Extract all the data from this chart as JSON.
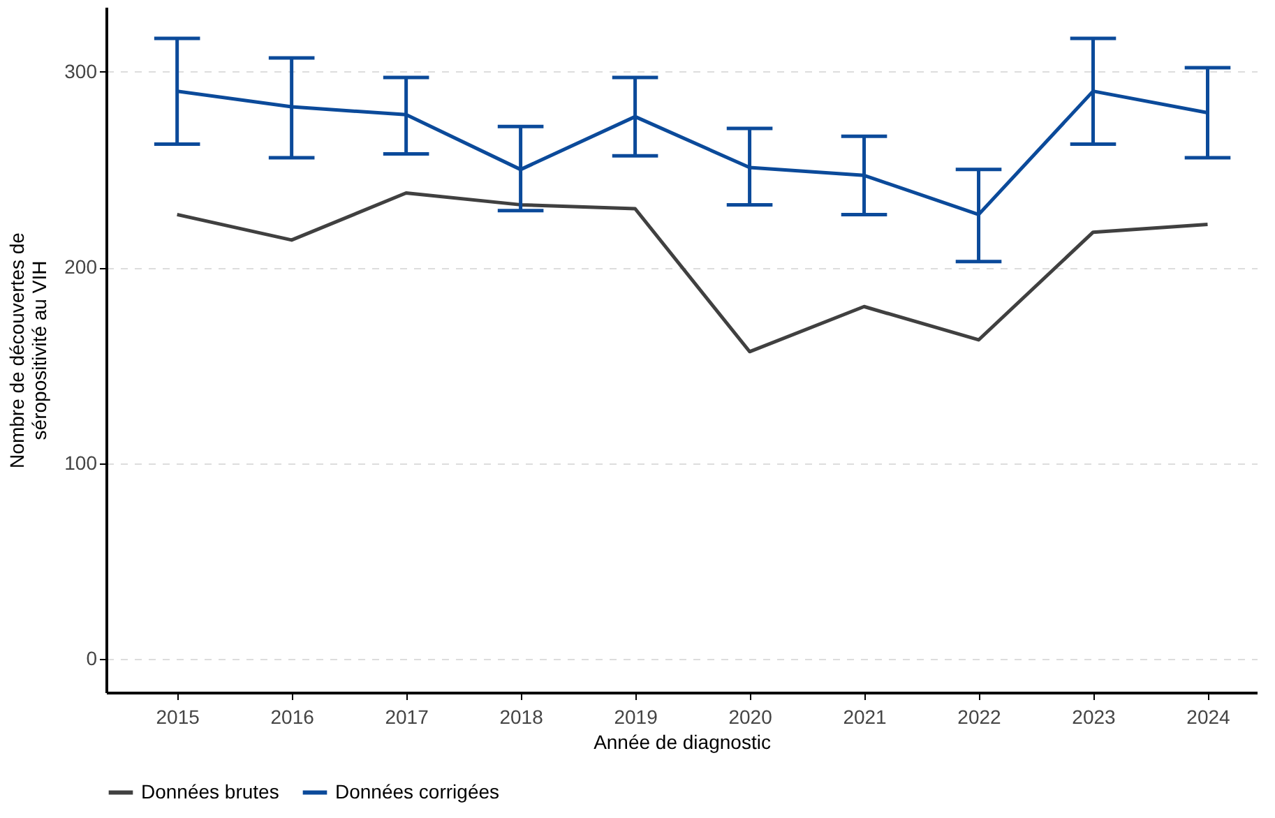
{
  "chart_data": {
    "type": "line",
    "xlabel": "Année de diagnostic",
    "ylabel": "Nombre de découvertes de\nséropositivité au VIH",
    "categories": [
      "2015",
      "2016",
      "2017",
      "2018",
      "2019",
      "2020",
      "2021",
      "2022",
      "2023",
      "2024"
    ],
    "series": [
      {
        "name": "Données brutes",
        "color": "#404040",
        "values": [
          227,
          214,
          238,
          232,
          230,
          157,
          180,
          163,
          218,
          222
        ]
      },
      {
        "name": "Données corrigées",
        "color": "#0b4a9a",
        "values": [
          290,
          282,
          278,
          250,
          277,
          251,
          247,
          227,
          290,
          279
        ],
        "errors": [
          [
            263,
            317
          ],
          [
            256,
            307
          ],
          [
            258,
            297
          ],
          [
            229,
            272
          ],
          [
            257,
            297
          ],
          [
            232,
            271
          ],
          [
            227,
            267
          ],
          [
            203,
            250
          ],
          [
            263,
            317
          ],
          [
            256,
            302
          ]
        ]
      }
    ],
    "ylim": [
      -17,
      333
    ],
    "yticks": [
      0,
      100,
      200,
      300
    ],
    "grid": "y",
    "legend": "bottom",
    "marker": "none",
    "line_style": "solid"
  }
}
